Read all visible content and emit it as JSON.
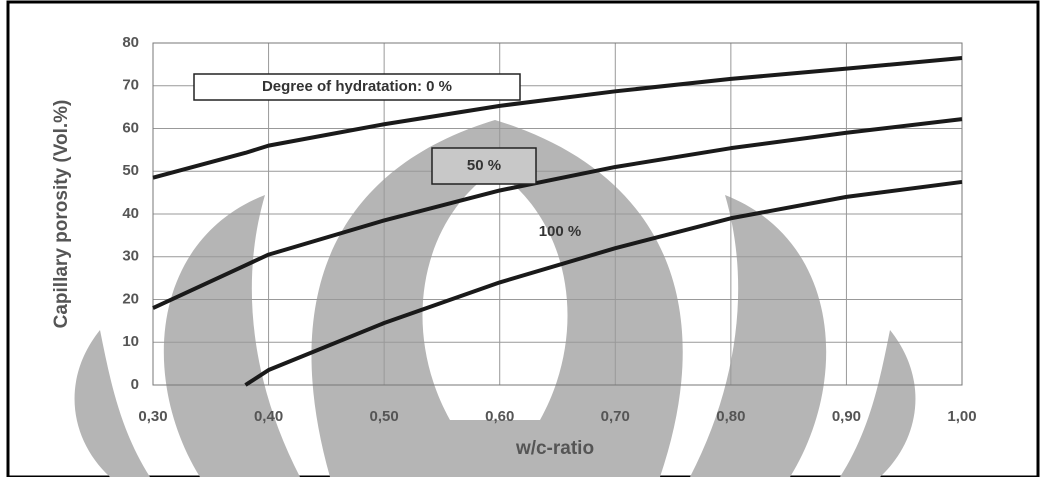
{
  "chart_data": {
    "type": "line",
    "ylabel": "Capillary porosity (Vol.%)",
    "xlabel": "w/c-ratio",
    "x": [
      0.3,
      0.38,
      0.4,
      0.5,
      0.6,
      0.7,
      0.8,
      0.9,
      1.0
    ],
    "series": [
      {
        "name": "Degree of hydratation: 0 %",
        "color": "#1a1a1a",
        "values": [
          48.5,
          54.3,
          56,
          61,
          65.3,
          68.7,
          71.6,
          74,
          76.5
        ]
      },
      {
        "name": "50 %",
        "color": "#1a1a1a",
        "values": [
          18,
          28,
          30.5,
          38.5,
          45.5,
          51,
          55.4,
          59,
          62.2
        ]
      },
      {
        "name": "100 %",
        "color": "#1a1a1a",
        "values": [
          null,
          0,
          3.5,
          14.5,
          24,
          32,
          39,
          44,
          47.5
        ]
      }
    ],
    "xlim": [
      0.3,
      1.0
    ],
    "xticks": [
      {
        "value": 0.3,
        "label": "0,30"
      },
      {
        "value": 0.4,
        "label": "0,40"
      },
      {
        "value": 0.5,
        "label": "0,50"
      },
      {
        "value": 0.6,
        "label": "0,60"
      },
      {
        "value": 0.7,
        "label": "0,70"
      },
      {
        "value": 0.8,
        "label": "0,80"
      },
      {
        "value": 0.9,
        "label": "0,90"
      },
      {
        "value": 1.0,
        "label": "1,00"
      }
    ],
    "ylim": [
      0,
      80
    ],
    "yticks": [
      0,
      10,
      20,
      30,
      40,
      50,
      60,
      70,
      80
    ],
    "grid": true
  }
}
